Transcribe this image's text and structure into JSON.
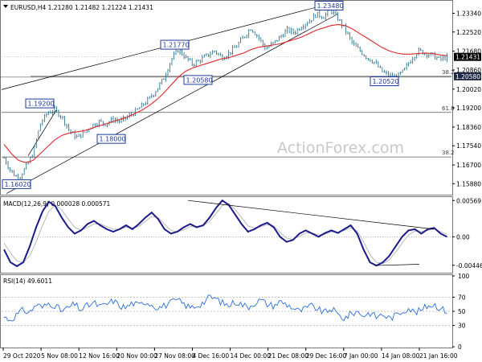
{
  "chart_data": [
    {
      "type": "candlestick",
      "title": "EURUSD,H4  1.21280 1.21482 1.21224 1.21431",
      "ylim": [
        1.154,
        1.2385
      ],
      "yticks": [
        "1.23340",
        "1.22520",
        "1.21680",
        "1.20860",
        "1.20020",
        "1.19200",
        "1.18360",
        "1.17540",
        "1.16700",
        "1.15880"
      ],
      "last_price": "1.21431",
      "support_price": "1.20580",
      "close_path": [
        1.17,
        1.164,
        1.161,
        1.166,
        1.172,
        1.185,
        1.19,
        1.191,
        1.188,
        1.182,
        1.179,
        1.181,
        1.184,
        1.186,
        1.185,
        1.187,
        1.186,
        1.188,
        1.19,
        1.193,
        1.196,
        1.2,
        1.205,
        1.213,
        1.2175,
        1.214,
        1.211,
        1.213,
        1.215,
        1.217,
        1.214,
        1.216,
        1.219,
        1.223,
        1.227,
        1.223,
        1.218,
        1.22,
        1.223,
        1.226,
        1.225,
        1.228,
        1.23,
        1.233,
        1.232,
        1.2348,
        1.231,
        1.226,
        1.22,
        1.217,
        1.214,
        1.212,
        1.208,
        1.206,
        1.2053,
        1.208,
        1.213,
        1.217,
        1.216,
        1.215,
        1.2131,
        1.2143
      ],
      "sma_path": [
        1.176,
        1.172,
        1.169,
        1.168,
        1.169,
        1.172,
        1.175,
        1.178,
        1.18,
        1.181,
        1.1815,
        1.182,
        1.183,
        1.184,
        1.185,
        1.186,
        1.187,
        1.188,
        1.1895,
        1.191,
        1.193,
        1.1955,
        1.1985,
        1.202,
        1.2055,
        1.208,
        1.2095,
        1.2105,
        1.2115,
        1.2125,
        1.2135,
        1.214,
        1.215,
        1.216,
        1.2175,
        1.2185,
        1.219,
        1.2195,
        1.22,
        1.221,
        1.222,
        1.223,
        1.2245,
        1.226,
        1.227,
        1.228,
        1.2285,
        1.228,
        1.2265,
        1.2245,
        1.2225,
        1.2205,
        1.2185,
        1.217,
        1.216,
        1.2155,
        1.2155,
        1.2158,
        1.216,
        1.2158,
        1.2152,
        1.2148
      ],
      "price_labels": [
        "1.23480",
        "1.21770",
        "1.20580",
        "1.19200",
        "1.18000",
        "1.20520",
        "1.16020"
      ],
      "fib_levels": [
        {
          "label": "38.2",
          "price": 1.2058
        },
        {
          "label": "61.8",
          "price": 1.19
        },
        {
          "label": "38.2",
          "price": 1.1705
        }
      ],
      "hlines": [
        1.2058,
        1.19,
        1.1705
      ]
    },
    {
      "type": "line",
      "title": "MACD(12,26,9) 0.000028 0.000571",
      "ylim": [
        -0.0055,
        0.0061
      ],
      "yticks": [
        "0.00569",
        "0.00",
        "-0.00446"
      ],
      "macd_path": [
        -0.002,
        -0.004,
        -0.0046,
        -0.004,
        -0.0015,
        0.0015,
        0.004,
        0.0055,
        0.0048,
        0.003,
        0.0015,
        0.0005,
        0.001,
        0.002,
        0.0025,
        0.0018,
        0.0012,
        0.0008,
        0.0012,
        0.0018,
        0.0012,
        0.002,
        0.003,
        0.0038,
        0.0028,
        0.0012,
        0.0005,
        0.0008,
        0.0015,
        0.002,
        0.0015,
        0.0018,
        0.003,
        0.0045,
        0.0057,
        0.005,
        0.0035,
        0.002,
        0.0008,
        0.0012,
        0.0018,
        0.0022,
        0.0015,
        0.0,
        -0.0008,
        -0.0005,
        0.0005,
        0.001,
        0.0005,
        0.0,
        0.0006,
        0.001,
        0.0006,
        0.0012,
        0.0018,
        0.0005,
        -0.002,
        -0.004,
        -0.0045,
        -0.004,
        -0.003,
        -0.0015,
        0.0,
        0.001,
        0.0012,
        0.0005,
        0.0012,
        0.0014,
        0.0005,
        0.0
      ],
      "signal_path": [
        -0.001,
        -0.0025,
        -0.0038,
        -0.004,
        -0.003,
        -0.0008,
        0.0018,
        0.004,
        0.005,
        0.0042,
        0.0028,
        0.0015,
        0.001,
        0.0015,
        0.002,
        0.002,
        0.0016,
        0.0012,
        0.0012,
        0.0015,
        0.0014,
        0.0016,
        0.0024,
        0.0032,
        0.003,
        0.002,
        0.001,
        0.0008,
        0.0011,
        0.0016,
        0.0016,
        0.0017,
        0.0024,
        0.0036,
        0.0049,
        0.0052,
        0.0043,
        0.003,
        0.0017,
        0.0014,
        0.0016,
        0.0019,
        0.0017,
        0.0007,
        -0.0002,
        -0.0004,
        0.0001,
        0.0006,
        0.0006,
        0.0003,
        0.0004,
        0.0008,
        0.0007,
        0.001,
        0.0014,
        0.0009,
        -0.0008,
        -0.0028,
        -0.004,
        -0.0042,
        -0.0036,
        -0.0024,
        -0.001,
        0.0003,
        0.0009,
        0.0008,
        0.001,
        0.0012,
        0.0008,
        0.0004
      ]
    },
    {
      "type": "line",
      "title": "RSI(14) 49.6011",
      "ylim": [
        0,
        100
      ],
      "yticks": [
        "100",
        "70",
        "50",
        "30",
        "0"
      ],
      "rsi_path": [
        42,
        38,
        45,
        52,
        48,
        60,
        55,
        62,
        58,
        50,
        55,
        60,
        52,
        58,
        62,
        56,
        60,
        65,
        58,
        55,
        62,
        58,
        64,
        60,
        55,
        58,
        62,
        66,
        60,
        55,
        58,
        62,
        70,
        68,
        62,
        58,
        64,
        60,
        56,
        62,
        66,
        60,
        58,
        64,
        60,
        55,
        50,
        54,
        58,
        52,
        48,
        54,
        45,
        40,
        46,
        50,
        44,
        48,
        42,
        46,
        40,
        44,
        50,
        55,
        48,
        52,
        58,
        60,
        54,
        50
      ]
    }
  ],
  "time_labels": [
    "29 Oct 2020",
    "5 Nov 08:00",
    "12 Nov 16:00",
    "20 Nov 00:00",
    "27 Nov 08:00",
    "4 Dec 16:00",
    "14 Dec 00:00",
    "21 Dec 08:00",
    "29 Dec 16:00",
    "7 Jan 00:00",
    "14 Jan 08:00",
    "21 Jan 16:00"
  ],
  "watermark": "ActionForex.com",
  "colors": {
    "candle": "#1f6b8a",
    "sma": "#e0262b",
    "macd": "#1a1a8c",
    "signal": "#aaaaaa",
    "rsi": "#2a6fd6",
    "trend": "#000000",
    "box": "#1e3a9c",
    "grid": "#8c8c8c"
  }
}
